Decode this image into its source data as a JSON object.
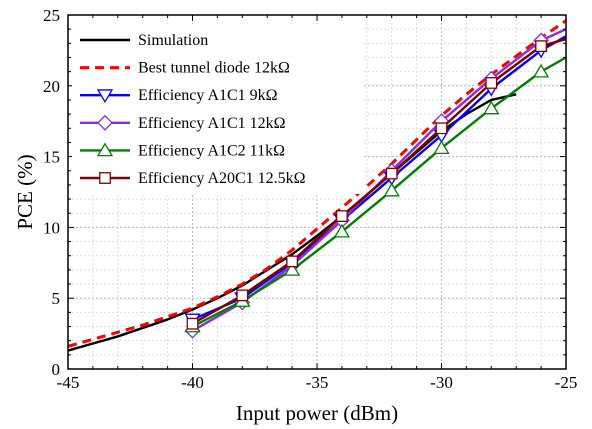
{
  "chart_data": {
    "type": "line",
    "title": "",
    "xlabel": "Input power (dBm)",
    "ylabel": "PCE (%)",
    "xlim": [
      -45,
      -25
    ],
    "ylim": [
      0,
      25
    ],
    "xticks": [
      -45,
      -40,
      -35,
      -30,
      -25
    ],
    "xtick_labels": [
      "-45",
      "-40",
      "-35",
      "-30",
      "-25"
    ],
    "yticks": [
      0,
      5,
      10,
      15,
      20,
      25
    ],
    "ytick_labels": [
      "0",
      "5",
      "10",
      "15",
      "20",
      "25"
    ],
    "grid": true,
    "legend_position": "top-left",
    "series": [
      {
        "name": "Simulation",
        "color": "#000000",
        "line_style": "solid",
        "marker": "none",
        "x": [
          -45,
          -44,
          -43,
          -42,
          -41,
          -40,
          -39,
          -38,
          -37,
          -36,
          -35,
          -34,
          -33,
          -32,
          -31,
          -30,
          -29,
          -28,
          -27
        ],
        "y": [
          1.3,
          1.8,
          2.3,
          2.9,
          3.5,
          4.2,
          5.0,
          5.9,
          7.0,
          8.1,
          9.4,
          10.8,
          12.3,
          13.8,
          15.3,
          16.8,
          18.0,
          19.0,
          19.4
        ]
      },
      {
        "name": "Best tunnel diode 12kΩ",
        "color": "#ff0000",
        "line_style": "dashed",
        "marker": "none",
        "x": [
          -45,
          -44,
          -43,
          -42,
          -41,
          -40,
          -39,
          -38,
          -37,
          -36,
          -35,
          -34,
          -33,
          -32,
          -31,
          -30,
          -29,
          -28,
          -27,
          -26,
          -25
        ],
        "y": [
          1.6,
          2.1,
          2.6,
          3.1,
          3.7,
          4.3,
          5.1,
          6.0,
          7.1,
          8.4,
          9.9,
          11.4,
          12.9,
          14.5,
          16.2,
          17.9,
          19.4,
          20.8,
          22.1,
          23.4,
          24.6
        ]
      },
      {
        "name": "Efficiency A1C1 9kΩ",
        "color": "#0000ff",
        "line_style": "solid",
        "marker": "triangle-down",
        "x": [
          -40,
          -38,
          -36,
          -34,
          -32,
          -30,
          -28,
          -26,
          -25
        ],
        "y": [
          3.5,
          5.0,
          7.5,
          10.5,
          13.5,
          16.5,
          19.8,
          22.5,
          23.5
        ]
      },
      {
        "name": "Efficiency A1C1 12kΩ",
        "color": "#8a2be2",
        "line_style": "solid",
        "marker": "diamond",
        "x": [
          -40,
          -38,
          -36,
          -34,
          -32,
          -30,
          -28,
          -26,
          -25
        ],
        "y": [
          2.7,
          4.7,
          7.3,
          10.5,
          14.0,
          17.5,
          20.5,
          23.2,
          24.0
        ]
      },
      {
        "name": "Efficiency A1C2 11kΩ",
        "color": "#008000",
        "line_style": "solid",
        "marker": "triangle-up",
        "x": [
          -40,
          -38,
          -36,
          -34,
          -32,
          -30,
          -28,
          -26,
          -25
        ],
        "y": [
          3.0,
          4.8,
          7.0,
          9.7,
          12.6,
          15.6,
          18.4,
          21.0,
          22.0
        ]
      },
      {
        "name": "Efficiency A20C1 12.5kΩ",
        "color": "#800000",
        "line_style": "solid",
        "marker": "square",
        "x": [
          -40,
          -38,
          -36,
          -34,
          -32,
          -30,
          -28,
          -26,
          -25
        ],
        "y": [
          3.2,
          5.2,
          7.6,
          10.8,
          13.8,
          17.0,
          20.2,
          22.8,
          23.3
        ]
      }
    ]
  }
}
